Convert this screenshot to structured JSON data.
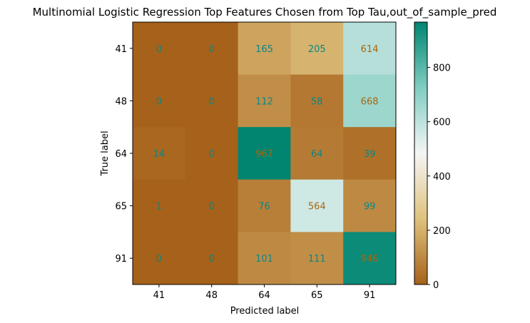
{
  "chart_data": {
    "type": "heatmap",
    "title": "Multinomial Logistic Regression Top Features Chosen from Top Tau,out_of_sample_pred",
    "xlabel": "Predicted label",
    "ylabel": "True label",
    "x_categories": [
      "41",
      "48",
      "64",
      "65",
      "91"
    ],
    "y_categories": [
      "41",
      "48",
      "64",
      "65",
      "91"
    ],
    "matrix": [
      [
        0,
        0,
        165,
        205,
        614
      ],
      [
        0,
        0,
        112,
        58,
        668
      ],
      [
        14,
        0,
        967,
        64,
        39
      ],
      [
        1,
        0,
        76,
        564,
        99
      ],
      [
        0,
        0,
        101,
        111,
        946
      ]
    ],
    "colorbar": {
      "range": [
        0,
        967
      ],
      "ticks": [
        0,
        200,
        400,
        600,
        800
      ],
      "colormap": [
        "#a6611a",
        "#dfc27d",
        "#f5f5f5",
        "#80cdc1",
        "#018571"
      ]
    },
    "text_colors": {
      "on_low": "#0b8686",
      "on_high": "#a8660f"
    },
    "grid": false
  }
}
